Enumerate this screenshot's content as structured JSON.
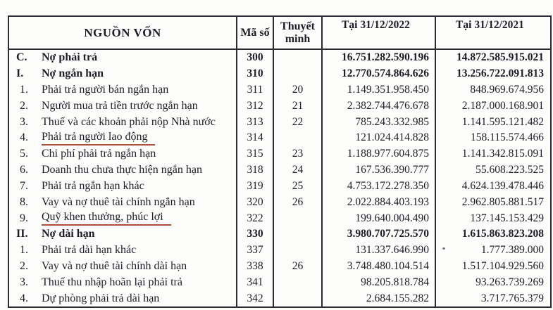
{
  "table": {
    "headers": {
      "name": "NGUỒN VỐN",
      "code": "Mã số",
      "notes": "Thuyết minh",
      "col2022": "Tại 31/12/2022",
      "col2021": "Tại 31/12/2021"
    },
    "rows": [
      {
        "no": "C.",
        "label": "Nợ phải trả",
        "code": "300",
        "note": "",
        "v2022": "16.751.282.590.196",
        "v2021": "14.872.585.915.021",
        "bold": true,
        "underline": false
      },
      {
        "no": "I.",
        "label": "Nợ ngắn hạn",
        "code": "310",
        "note": "",
        "v2022": "12.770.574.864.626",
        "v2021": "13.256.722.091.813",
        "bold": true,
        "underline": false
      },
      {
        "no": "1.",
        "label": "Phải trả người bán ngắn hạn",
        "code": "311",
        "note": "20",
        "v2022": "1.149.351.958.450",
        "v2021": "848.969.674.956",
        "bold": false,
        "underline": false
      },
      {
        "no": "2.",
        "label": "Người mua trả tiền trước ngắn hạn",
        "code": "312",
        "note": "21",
        "v2022": "2.382.744.476.678",
        "v2021": "2.187.000.168.901",
        "bold": false,
        "underline": false
      },
      {
        "no": "3.",
        "label": "Thuế và các khoản phải nộp Nhà nước",
        "code": "313",
        "note": "22",
        "v2022": "785.243.332.985",
        "v2021": "1.141.595.121.482",
        "bold": false,
        "underline": false
      },
      {
        "no": "4.",
        "label": "Phải trả người lao động",
        "code": "314",
        "note": "",
        "v2022": "121.024.414.828",
        "v2021": "158.115.574.466",
        "bold": false,
        "underline": true
      },
      {
        "no": "5.",
        "label": "Chi phí phải trả ngắn hạn",
        "code": "315",
        "note": "23",
        "v2022": "1.188.977.604.875",
        "v2021": "1.141.342.815.091",
        "bold": false,
        "underline": false
      },
      {
        "no": "6.",
        "label": "Doanh thu chưa thực hiện ngắn hạn",
        "code": "318",
        "note": "24",
        "v2022": "167.536.390.777",
        "v2021": "55.608.223.525",
        "bold": false,
        "underline": false
      },
      {
        "no": "7.",
        "label": "Phải trả ngắn hạn khác",
        "code": "319",
        "note": "25",
        "v2022": "4.753.172.278.350",
        "v2021": "4.624.139.478.446",
        "bold": false,
        "underline": false
      },
      {
        "no": "8.",
        "label": "Vay và nợ thuê tài chính ngắn hạn",
        "code": "320",
        "note": "26",
        "v2022": "2.022.884.403.193",
        "v2021": "2.962.805.881.517",
        "bold": false,
        "underline": false
      },
      {
        "no": "9.",
        "label": "Quỹ khen thưởng, phúc lợi",
        "code": "322",
        "note": "",
        "v2022": "199.640.004.490",
        "v2021": "137.145.153.429",
        "bold": false,
        "underline": true
      },
      {
        "no": "II.",
        "label": "Nợ dài hạn",
        "code": "330",
        "note": "",
        "v2022": "3.980.707.725.570",
        "v2021": "1.615.863.823.208",
        "bold": true,
        "underline": false
      },
      {
        "no": "1.",
        "label": "Phải trả dài hạn khác",
        "code": "337",
        "note": "",
        "v2022": "131.337.646.990",
        "v2021": "1.777.389.000",
        "bold": false,
        "underline": false
      },
      {
        "no": "2.",
        "label": "Vay và nợ thuê tài chính dài hạn",
        "code": "338",
        "note": "26",
        "v2022": "3.748.480.104.514",
        "v2021": "1.517.104.929.560",
        "bold": false,
        "underline": false
      },
      {
        "no": "3.",
        "label": "Thuế thu nhập hoãn lại phải trả",
        "code": "341",
        "note": "",
        "v2022": "98.205.818.784",
        "v2021": "93.263.739.269",
        "bold": false,
        "underline": false
      },
      {
        "no": "4.",
        "label": "Dự phòng phải trả dài hạn",
        "code": "342",
        "note": "",
        "v2022": "2.684.155.282",
        "v2021": "3.717.765.379",
        "bold": false,
        "underline": false
      }
    ]
  },
  "colors": {
    "text": "#1d1d27",
    "border": "#2b2b33",
    "annotation_underline": "#ab4e3b",
    "background": "#fcfcfa"
  }
}
